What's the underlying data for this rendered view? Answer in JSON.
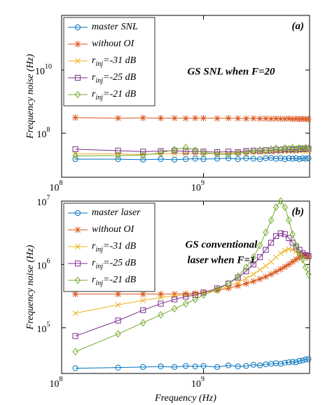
{
  "chart_data": [
    {
      "type": "line",
      "panel_label": "(a)",
      "annotation": [
        "GS SNL when F=20"
      ],
      "ylabel": "Frequency noise (Hz)",
      "xlog": true,
      "ylog": true,
      "legend": "upper left",
      "xlim": [
        100000000,
        5600000000
      ],
      "ylim": [
        4000000,
        540000000000
      ],
      "xticks": [
        {
          "value": 100000000,
          "label": [
            "10",
            "8"
          ]
        },
        {
          "value": 1000000000,
          "label": [
            "10",
            "9"
          ]
        }
      ],
      "yticks": [
        {
          "value": 100000000,
          "label": [
            "10",
            "8"
          ]
        },
        {
          "value": 10000000000,
          "label": [
            "10",
            "10"
          ]
        }
      ],
      "x": [
        125000000,
        250000000,
        375000000,
        500000000,
        625000000,
        750000000,
        875000000,
        1000000000,
        1250000000,
        1500000000,
        1750000000,
        2000000000,
        2250000000,
        2500000000,
        2750000000,
        3000000000,
        3250000000,
        3500000000,
        3750000000,
        4000000000,
        4250000000,
        4500000000,
        4750000000,
        5000000000,
        5250000000,
        5500000000
      ],
      "series": [
        {
          "name": "master SNL",
          "color": "#0072bd",
          "marker": "circle",
          "values": [
            15000000,
            15000000,
            14500000,
            15000000,
            14500000,
            15000000,
            15500000,
            15000000,
            15500000,
            16000000,
            15000000,
            16000000,
            15500000,
            15000000,
            16000000,
            16500000,
            15500000,
            16000000,
            15000000,
            16000000,
            15500000,
            16000000,
            15000000,
            16000000,
            15500000,
            16000000
          ]
        },
        {
          "name": "without OI",
          "color": "#d95319",
          "marker": "star",
          "values": [
            310000000,
            300000000,
            305000000,
            300000000,
            300000000,
            295000000,
            300000000,
            300000000,
            295000000,
            300000000,
            295000000,
            290000000,
            295000000,
            290000000,
            290000000,
            285000000,
            290000000,
            285000000,
            285000000,
            290000000,
            280000000,
            285000000,
            280000000,
            285000000,
            280000000,
            280000000
          ]
        },
        {
          "name": [
            "r",
            "inj",
            "=-31 dB"
          ],
          "color": "#edb120",
          "marker": "x",
          "values": [
            22000000,
            22000000,
            21000000,
            22000000,
            22500000,
            23000000,
            22000000,
            22000000,
            22500000,
            23000000,
            24000000,
            23000000,
            24000000,
            25000000,
            24000000,
            26000000,
            25000000,
            27000000,
            26000000,
            27000000,
            26000000,
            28000000,
            27000000,
            28000000,
            27000000,
            28000000
          ]
        },
        {
          "name": [
            "r",
            "inj",
            "=-25 dB"
          ],
          "color": "#7e2f8e",
          "marker": "square",
          "values": [
            31000000,
            28000000,
            26000000,
            27000000,
            28000000,
            26000000,
            26500000,
            26000000,
            25000000,
            26000000,
            25000000,
            27000000,
            28000000,
            27000000,
            29000000,
            28000000,
            30000000,
            29000000,
            31000000,
            30000000,
            31000000,
            30000000,
            32000000,
            31000000,
            32000000,
            32000000
          ]
        },
        {
          "name": [
            "r",
            "inj",
            "=-21 dB"
          ],
          "color": "#77ac30",
          "marker": "diamond",
          "values": [
            19000000,
            19500000,
            20000000,
            24000000,
            30000000,
            35000000,
            29000000,
            24000000,
            22000000,
            21000000,
            23000000,
            25000000,
            27000000,
            29000000,
            28000000,
            31000000,
            33000000,
            30000000,
            34000000,
            32000000,
            35000000,
            31000000,
            34000000,
            33000000,
            35000000,
            33000000
          ]
        }
      ]
    },
    {
      "type": "line",
      "panel_label": "(b)",
      "annotation": [
        "GS conventional",
        "laser when F=1"
      ],
      "ylabel": "Frequency noise (Hz)",
      "xlabel": "Frequency (Hz)",
      "xlog": true,
      "ylog": true,
      "legend": "upper left",
      "xlim": [
        100000000,
        5600000000
      ],
      "ylim": [
        19000,
        10000000
      ],
      "xticks": [
        {
          "value": 100000000,
          "label": [
            "10",
            "8"
          ]
        },
        {
          "value": 1000000000,
          "label": [
            "10",
            "9"
          ]
        }
      ],
      "yticks": [
        {
          "value": 100000,
          "label": [
            "10",
            "5"
          ]
        },
        {
          "value": 1000000,
          "label": [
            "10",
            "6"
          ]
        },
        {
          "value": 10000000,
          "label": [
            "10",
            "7"
          ]
        }
      ],
      "x": [
        125000000,
        250000000,
        375000000,
        500000000,
        625000000,
        750000000,
        875000000,
        1000000000,
        1250000000,
        1500000000,
        1750000000,
        2000000000,
        2250000000,
        2500000000,
        2750000000,
        3000000000,
        3250000000,
        3500000000,
        3750000000,
        4000000000,
        4250000000,
        4500000000,
        4750000000,
        5000000000,
        5250000000,
        5500000000
      ],
      "series": [
        {
          "name": "master laser",
          "color": "#0072bd",
          "marker": "circle",
          "values": [
            23000,
            23500,
            24000,
            24500,
            24000,
            25000,
            24500,
            25000,
            24000,
            25500,
            24500,
            25000,
            26000,
            25500,
            26500,
            27000,
            27500,
            27000,
            28000,
            28500,
            29000,
            28500,
            30000,
            30500,
            31500,
            32000
          ]
        },
        {
          "name": "without OI",
          "color": "#d95319",
          "marker": "star",
          "values": [
            340000,
            340000,
            340000,
            340000,
            340000,
            345000,
            350000,
            360000,
            390000,
            420000,
            460000,
            500000,
            540000,
            590000,
            640000,
            700000,
            770000,
            840000,
            920000,
            1000000,
            1100000,
            1200000,
            1300000,
            1400000,
            1400000,
            1350000
          ]
        },
        {
          "name": [
            "r",
            "inj",
            "=-31 dB"
          ],
          "color": "#edb120",
          "marker": "x",
          "values": [
            170000,
            230000,
            270000,
            300000,
            320000,
            330000,
            340000,
            360000,
            400000,
            450000,
            520000,
            600000,
            700000,
            820000,
            950000,
            1100000,
            1300000,
            1500000,
            1650000,
            1750000,
            1700000,
            1600000,
            1500000,
            1400000,
            1300000,
            1250000
          ]
        },
        {
          "name": [
            "r",
            "inj",
            "=-25 dB"
          ],
          "color": "#7e2f8e",
          "marker": "square",
          "values": [
            74000,
            130000,
            190000,
            240000,
            280000,
            310000,
            330000,
            360000,
            420000,
            500000,
            620000,
            780000,
            1000000,
            1300000,
            1700000,
            2200000,
            2800000,
            3100000,
            3000000,
            2600000,
            2200000,
            1900000,
            1700000,
            1500000,
            1400000,
            1350000
          ]
        },
        {
          "name": [
            "r",
            "inj",
            "=-21 dB"
          ],
          "color": "#77ac30",
          "marker": "diamond",
          "values": [
            42000,
            80000,
            120000,
            160000,
            200000,
            240000,
            280000,
            330000,
            400000,
            500000,
            650000,
            900000,
            1300000,
            2000000,
            3200000,
            5000000,
            8000000,
            10000000,
            8000000,
            5000000,
            3000000,
            2000000,
            1500000,
            1200000,
            900000,
            700000
          ]
        }
      ]
    }
  ]
}
